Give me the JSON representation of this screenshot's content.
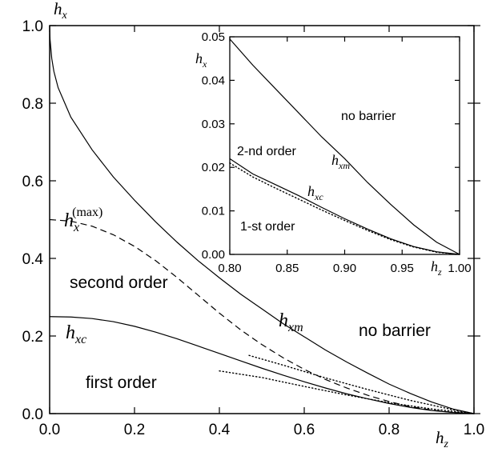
{
  "chart_data": [
    {
      "type": "line",
      "x_axis": {
        "label": "h_z",
        "range": [
          0.0,
          1.0
        ],
        "ticks": [
          "0.0",
          "0.2",
          "0.4",
          "0.6",
          "0.8",
          "1.0"
        ]
      },
      "y_axis": {
        "label": "h_x",
        "range": [
          0.0,
          1.0
        ],
        "ticks": [
          "0.0",
          "0.2",
          "0.4",
          "0.6",
          "0.8",
          "1.0"
        ]
      },
      "grid": false,
      "series": [
        {
          "name": "h_xm",
          "style": "solid",
          "x": [
            0.0,
            0.001,
            0.005,
            0.01,
            0.02,
            0.05,
            0.1,
            0.15,
            0.2,
            0.25,
            0.3,
            0.35,
            0.4,
            0.45,
            0.5,
            0.55,
            0.6,
            0.65,
            0.7,
            0.75,
            0.8,
            0.85,
            0.9,
            0.95,
            1.0
          ],
          "y": [
            1.0,
            0.964,
            0.915,
            0.882,
            0.84,
            0.764,
            0.68,
            0.61,
            0.55,
            0.494,
            0.442,
            0.394,
            0.35,
            0.308,
            0.27,
            0.232,
            0.198,
            0.164,
            0.133,
            0.104,
            0.076,
            0.052,
            0.03,
            0.012,
            0.0
          ]
        },
        {
          "name": "h_x^(max)",
          "style": "dashed",
          "x": [
            0.0,
            0.05,
            0.1,
            0.15,
            0.2,
            0.25,
            0.3,
            0.35,
            0.4,
            0.45,
            0.5,
            0.55,
            0.6,
            0.65,
            0.7,
            0.75,
            0.8,
            0.85,
            0.9,
            0.95,
            1.0
          ],
          "y": [
            0.5,
            0.496,
            0.483,
            0.461,
            0.431,
            0.394,
            0.351,
            0.305,
            0.259,
            0.216,
            0.178,
            0.144,
            0.114,
            0.088,
            0.066,
            0.047,
            0.031,
            0.018,
            0.009,
            0.003,
            0.0
          ]
        },
        {
          "name": "h_xc",
          "style": "solid",
          "x": [
            0.0,
            0.05,
            0.1,
            0.15,
            0.2,
            0.25,
            0.3,
            0.35,
            0.4,
            0.45,
            0.5,
            0.55,
            0.6,
            0.65,
            0.7,
            0.75,
            0.8,
            0.85,
            0.9,
            0.95,
            1.0
          ],
          "y": [
            0.25,
            0.249,
            0.245,
            0.237,
            0.225,
            0.21,
            0.193,
            0.174,
            0.155,
            0.136,
            0.117,
            0.099,
            0.082,
            0.066,
            0.051,
            0.038,
            0.026,
            0.016,
            0.008,
            0.003,
            0.0
          ]
        },
        {
          "style": "dotted",
          "x": [
            0.4,
            0.5,
            0.6,
            0.7,
            0.8,
            0.9,
            1.0
          ],
          "y": [
            0.11,
            0.093,
            0.07,
            0.048,
            0.028,
            0.012,
            0.0
          ]
        },
        {
          "style": "dotted",
          "x": [
            0.47,
            0.55,
            0.65,
            0.75,
            0.85,
            0.95,
            1.0
          ],
          "y": [
            0.15,
            0.125,
            0.092,
            0.062,
            0.034,
            0.01,
            0.0
          ]
        }
      ],
      "annotations": [
        "second order",
        "first order",
        "no barrier",
        "h_xm",
        "h_xc",
        "h_x^(max)"
      ]
    },
    {
      "type": "line",
      "x_axis": {
        "label": "h_z",
        "range": [
          0.8,
          1.0
        ],
        "ticks": [
          "0.80",
          "0.85",
          "0.90",
          "0.95",
          "1.00"
        ]
      },
      "y_axis": {
        "label": "h_x",
        "range": [
          0.0,
          0.05
        ],
        "ticks": [
          "0.00",
          "0.01",
          "0.02",
          "0.03",
          "0.04",
          "0.05"
        ]
      },
      "grid": false,
      "series": [
        {
          "name": "h_xm",
          "style": "solid",
          "x": [
            0.8,
            0.82,
            0.84,
            0.86,
            0.88,
            0.9,
            0.92,
            0.94,
            0.96,
            0.98,
            1.0
          ],
          "y": [
            0.0495,
            0.0435,
            0.038,
            0.0325,
            0.027,
            0.022,
            0.0165,
            0.0115,
            0.0068,
            0.0028,
            0.0
          ]
        },
        {
          "name": "h_xc",
          "style": "solid",
          "x": [
            0.8,
            0.82,
            0.84,
            0.86,
            0.88,
            0.9,
            0.92,
            0.94,
            0.96,
            0.98,
            1.0
          ],
          "y": [
            0.022,
            0.0185,
            0.016,
            0.0135,
            0.0108,
            0.0082,
            0.0058,
            0.0036,
            0.0018,
            0.0006,
            0.0
          ]
        },
        {
          "style": "dotted",
          "x": [
            0.8,
            0.82,
            0.84,
            0.86,
            0.88,
            0.9,
            0.92,
            0.94,
            0.96,
            0.98,
            1.0
          ],
          "y": [
            0.021,
            0.0178,
            0.0152,
            0.0127,
            0.0102,
            0.0078,
            0.0055,
            0.0034,
            0.0017,
            0.0005,
            0.0
          ]
        }
      ],
      "annotations": [
        "no barrier",
        "2-nd order",
        "1-st order",
        "h_xm",
        "h_xc"
      ]
    }
  ],
  "labels": {
    "main": {
      "second_order": "second order",
      "first_order": "first order",
      "no_barrier": "no barrier",
      "hxm": {
        "base": "h",
        "sub": "xm"
      },
      "hxc": {
        "base": "h",
        "sub": "xc"
      },
      "hxmax": {
        "base": "h",
        "sub": "x",
        "sup": "(max)"
      },
      "xaxis": {
        "base": "h",
        "sub": "z"
      },
      "yaxis": {
        "base": "h",
        "sub": "x"
      }
    },
    "inset": {
      "no_barrier": "no barrier",
      "second_order": "2-nd order",
      "first_order": "1-st order",
      "hxm": {
        "base": "h",
        "sub": "xm"
      },
      "hxc": {
        "base": "h",
        "sub": "xc"
      },
      "xaxis": {
        "base": "h",
        "sub": "z"
      },
      "yaxis": {
        "base": "h",
        "sub": "x"
      }
    }
  }
}
